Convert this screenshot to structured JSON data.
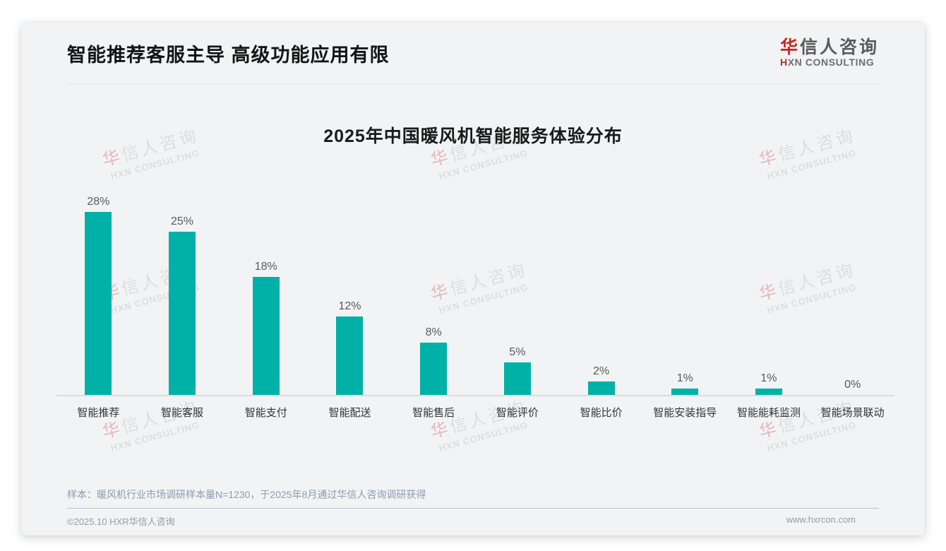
{
  "header": {
    "title": "智能推荐客服主导 高级功能应用有限",
    "logo": {
      "cn_first": "华",
      "cn_rest": "信人咨询",
      "en_first": "H",
      "en_rest": "XN CONSULTING"
    }
  },
  "watermark": {
    "cn_first": "华",
    "cn_rest": "信人咨询",
    "en": "HXN CONSULTING"
  },
  "chart_data": {
    "type": "bar",
    "title": "2025年中国暖风机智能服务体验分布",
    "categories": [
      "智能推荐",
      "智能客服",
      "智能支付",
      "智能配送",
      "智能售后",
      "智能评价",
      "智能比价",
      "智能安装指导",
      "智能能耗监测",
      "智能场景联动"
    ],
    "values": [
      28,
      25,
      18,
      12,
      8,
      5,
      2,
      1,
      1,
      0
    ],
    "unit": "%",
    "value_labels": [
      "28%",
      "25%",
      "18%",
      "12%",
      "8%",
      "5%",
      "2%",
      "1%",
      "1%",
      "0%"
    ],
    "xlabel": "",
    "ylabel": "",
    "ylim": [
      0,
      30
    ],
    "grid": false,
    "legend_position": "none",
    "bar_color": "#00b1a8"
  },
  "note": "样本：暖风机行业市场调研样本量N=1230，于2025年8月通过华信人咨询调研获得",
  "footer": {
    "copyright": "©2025.10 HXR华信人咨询",
    "website": "www.hxrcon.com"
  },
  "colors": {
    "bar": "#00b1a8",
    "logo_red": "#c5281c",
    "card_bg": "#f2f3f4"
  }
}
